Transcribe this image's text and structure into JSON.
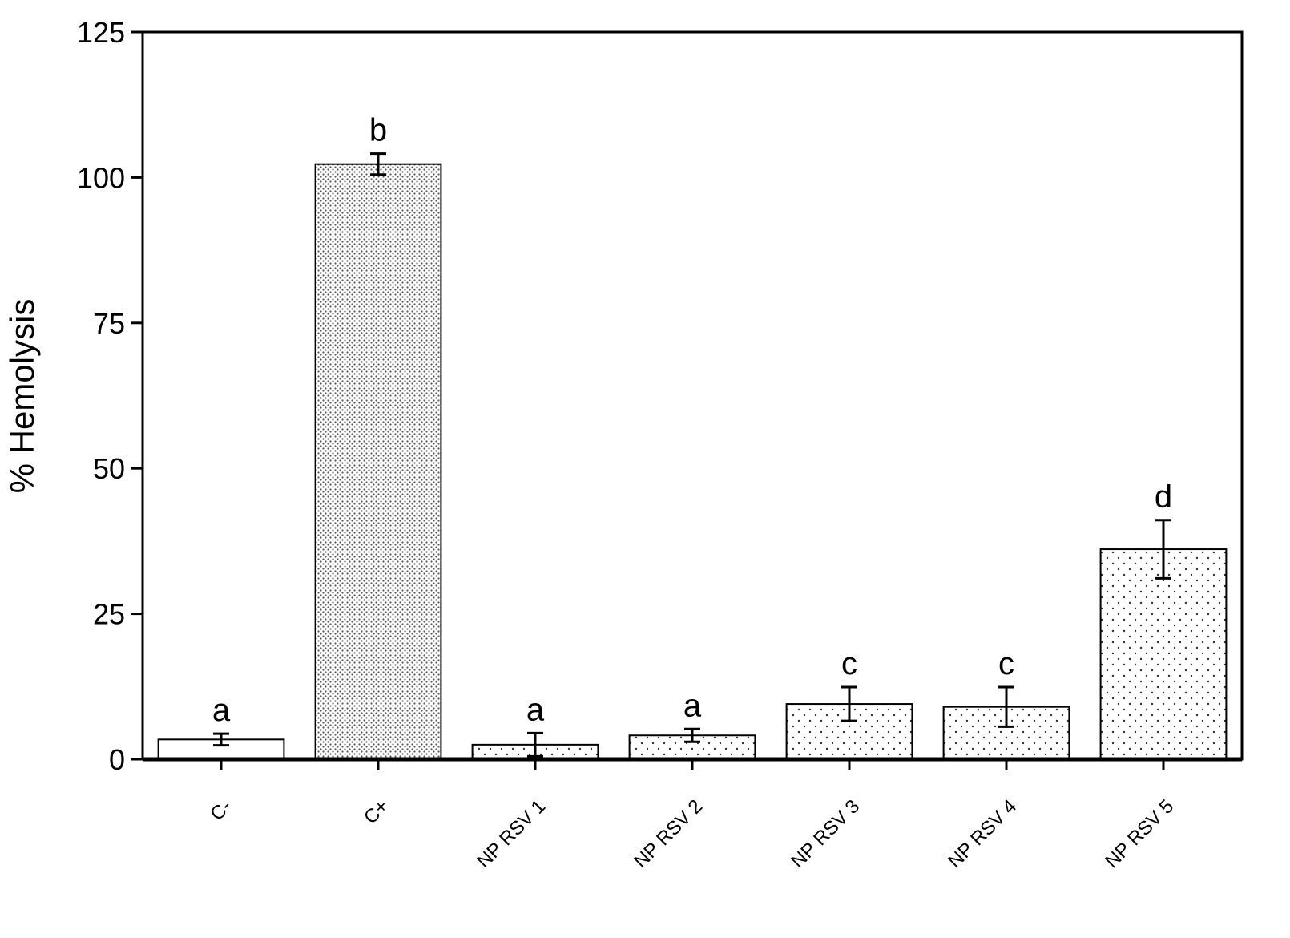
{
  "chart_data": {
    "type": "bar",
    "y_label": "% Hemolysis",
    "categories": [
      "C-",
      "C+",
      "NP RSV 1",
      "NP RSV 2",
      "NP RSV 3",
      "NP RSV 4",
      "NP RSV 5"
    ],
    "values": [
      3.4,
      102.3,
      2.5,
      4.1,
      9.5,
      9.0,
      36.1
    ],
    "errors": [
      1.0,
      1.8,
      2.0,
      1.1,
      2.9,
      3.4,
      5.0
    ],
    "annotations": [
      "a",
      "b",
      "a",
      "a",
      "c",
      "c",
      "d"
    ],
    "patterns": [
      "none",
      "dense",
      "sparse",
      "sparse",
      "sparse",
      "sparse",
      "sparse"
    ],
    "color": "#000000",
    "ylim": [
      0,
      125
    ],
    "yticks": [
      0,
      25,
      50,
      75,
      100,
      125
    ],
    "grid": false
  }
}
